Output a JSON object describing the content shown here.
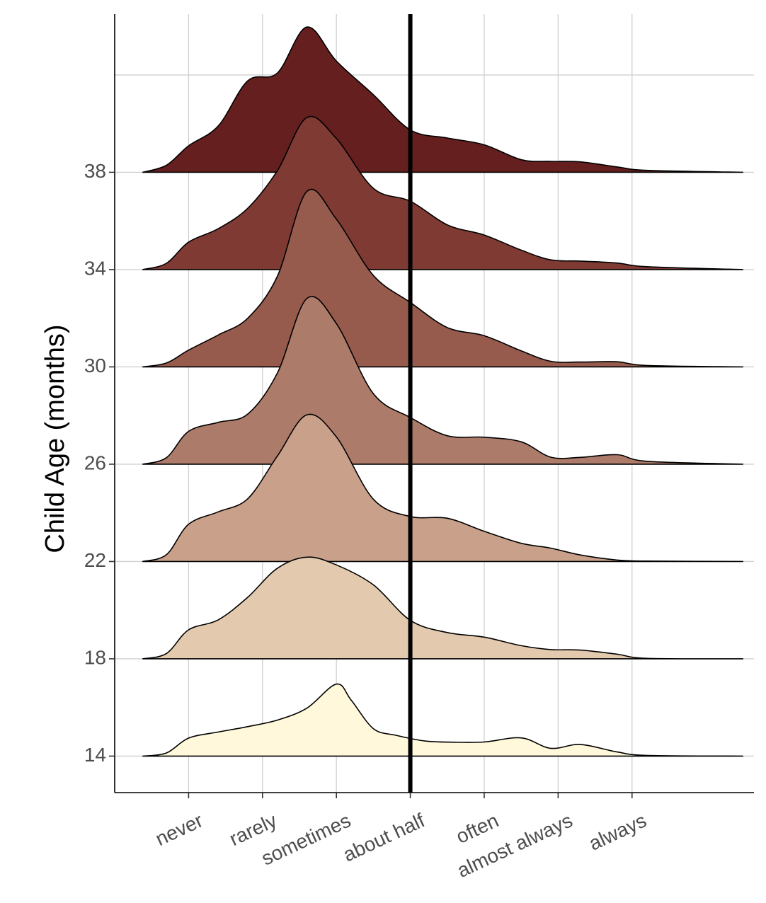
{
  "chart_data": {
    "type": "ridgeline",
    "ylabel": "Child Age (months)",
    "xlabel": "",
    "x_categories": [
      "never",
      "rarely",
      "sometimes",
      "about half",
      "often",
      "almost always",
      "always"
    ],
    "x_range": [
      0.0,
      8.65
    ],
    "y_ticks": [
      14,
      18,
      22,
      26,
      30,
      34,
      38
    ],
    "y_range": [
      12.5,
      44.5
    ],
    "reference_line": {
      "x": 4.0,
      "color": "#000000"
    },
    "grid": true,
    "legend": "none",
    "series": [
      {
        "age": 14,
        "color": "#FFF8DA",
        "points": [
          [
            0.38,
            0
          ],
          [
            0.7,
            0.13
          ],
          [
            1.0,
            0.74
          ],
          [
            1.4,
            0.99
          ],
          [
            1.8,
            1.21
          ],
          [
            2.2,
            1.48
          ],
          [
            2.6,
            1.97
          ],
          [
            3.0,
            2.96
          ],
          [
            3.2,
            2.3
          ],
          [
            3.5,
            1.13
          ],
          [
            3.8,
            0.86
          ],
          [
            4.2,
            0.62
          ],
          [
            4.6,
            0.57
          ],
          [
            5.0,
            0.58
          ],
          [
            5.5,
            0.75
          ],
          [
            5.9,
            0.32
          ],
          [
            6.3,
            0.48
          ],
          [
            6.8,
            0.17
          ],
          [
            7.2,
            0.03
          ],
          [
            8.5,
            0
          ]
        ]
      },
      {
        "age": 18,
        "color": "#E3CAAF",
        "points": [
          [
            0.38,
            0
          ],
          [
            0.7,
            0.22
          ],
          [
            1.0,
            1.19
          ],
          [
            1.4,
            1.6
          ],
          [
            1.8,
            2.53
          ],
          [
            2.2,
            3.72
          ],
          [
            2.6,
            4.18
          ],
          [
            3.0,
            3.86
          ],
          [
            3.5,
            3.04
          ],
          [
            4.0,
            1.58
          ],
          [
            4.5,
            1.08
          ],
          [
            5.0,
            0.89
          ],
          [
            5.5,
            0.54
          ],
          [
            5.9,
            0.38
          ],
          [
            6.3,
            0.36
          ],
          [
            6.8,
            0.19
          ],
          [
            7.2,
            0.02
          ],
          [
            8.5,
            0
          ]
        ]
      },
      {
        "age": 22,
        "color": "#C9A08A",
        "points": [
          [
            0.38,
            0
          ],
          [
            0.7,
            0.28
          ],
          [
            1.0,
            1.53
          ],
          [
            1.4,
            2.04
          ],
          [
            1.8,
            2.58
          ],
          [
            2.2,
            4.33
          ],
          [
            2.6,
            6.03
          ],
          [
            3.0,
            5.12
          ],
          [
            3.5,
            2.56
          ],
          [
            4.0,
            1.85
          ],
          [
            4.5,
            1.78
          ],
          [
            5.0,
            1.24
          ],
          [
            5.5,
            0.75
          ],
          [
            5.9,
            0.55
          ],
          [
            6.3,
            0.27
          ],
          [
            6.8,
            0.06
          ],
          [
            7.2,
            0.02
          ],
          [
            8.5,
            0
          ]
        ]
      },
      {
        "age": 26,
        "color": "#AD7B6A",
        "points": [
          [
            0.38,
            0
          ],
          [
            0.7,
            0.27
          ],
          [
            1.0,
            1.35
          ],
          [
            1.4,
            1.72
          ],
          [
            1.8,
            2.06
          ],
          [
            2.2,
            3.74
          ],
          [
            2.6,
            6.81
          ],
          [
            3.0,
            5.78
          ],
          [
            3.5,
            2.9
          ],
          [
            4.0,
            1.92
          ],
          [
            4.5,
            1.17
          ],
          [
            5.0,
            1.11
          ],
          [
            5.5,
            0.92
          ],
          [
            5.9,
            0.29
          ],
          [
            6.3,
            0.28
          ],
          [
            6.8,
            0.39
          ],
          [
            7.2,
            0.12
          ],
          [
            8.5,
            0
          ]
        ]
      },
      {
        "age": 30,
        "color": "#975B4D",
        "points": [
          [
            0.38,
            0
          ],
          [
            0.7,
            0.16
          ],
          [
            1.0,
            0.69
          ],
          [
            1.4,
            1.31
          ],
          [
            1.8,
            2.0
          ],
          [
            2.2,
            3.72
          ],
          [
            2.6,
            7.21
          ],
          [
            3.0,
            6.07
          ],
          [
            3.5,
            3.76
          ],
          [
            4.0,
            2.65
          ],
          [
            4.5,
            1.62
          ],
          [
            5.0,
            1.28
          ],
          [
            5.5,
            0.66
          ],
          [
            5.9,
            0.23
          ],
          [
            6.3,
            0.2
          ],
          [
            6.8,
            0.21
          ],
          [
            7.2,
            0.06
          ],
          [
            8.5,
            0
          ]
        ]
      },
      {
        "age": 34,
        "color": "#7E3A33",
        "points": [
          [
            0.38,
            0
          ],
          [
            0.7,
            0.26
          ],
          [
            1.0,
            1.13
          ],
          [
            1.4,
            1.68
          ],
          [
            1.8,
            2.52
          ],
          [
            2.2,
            4.06
          ],
          [
            2.6,
            6.25
          ],
          [
            3.0,
            5.39
          ],
          [
            3.5,
            3.34
          ],
          [
            4.0,
            2.81
          ],
          [
            4.5,
            1.84
          ],
          [
            5.0,
            1.42
          ],
          [
            5.5,
            0.8
          ],
          [
            5.9,
            0.4
          ],
          [
            6.3,
            0.35
          ],
          [
            6.8,
            0.27
          ],
          [
            7.2,
            0.12
          ],
          [
            8.5,
            0
          ]
        ]
      },
      {
        "age": 38,
        "color": "#651F1F",
        "points": [
          [
            0.38,
            0
          ],
          [
            0.7,
            0.29
          ],
          [
            1.0,
            1.09
          ],
          [
            1.4,
            1.9
          ],
          [
            1.8,
            3.76
          ],
          [
            2.2,
            4.08
          ],
          [
            2.6,
            5.97
          ],
          [
            3.0,
            4.57
          ],
          [
            3.5,
            3.19
          ],
          [
            4.0,
            1.74
          ],
          [
            4.5,
            1.41
          ],
          [
            5.0,
            1.13
          ],
          [
            5.5,
            0.52
          ],
          [
            5.9,
            0.45
          ],
          [
            6.3,
            0.43
          ],
          [
            6.8,
            0.22
          ],
          [
            7.2,
            0.08
          ],
          [
            8.5,
            0
          ]
        ]
      }
    ]
  }
}
